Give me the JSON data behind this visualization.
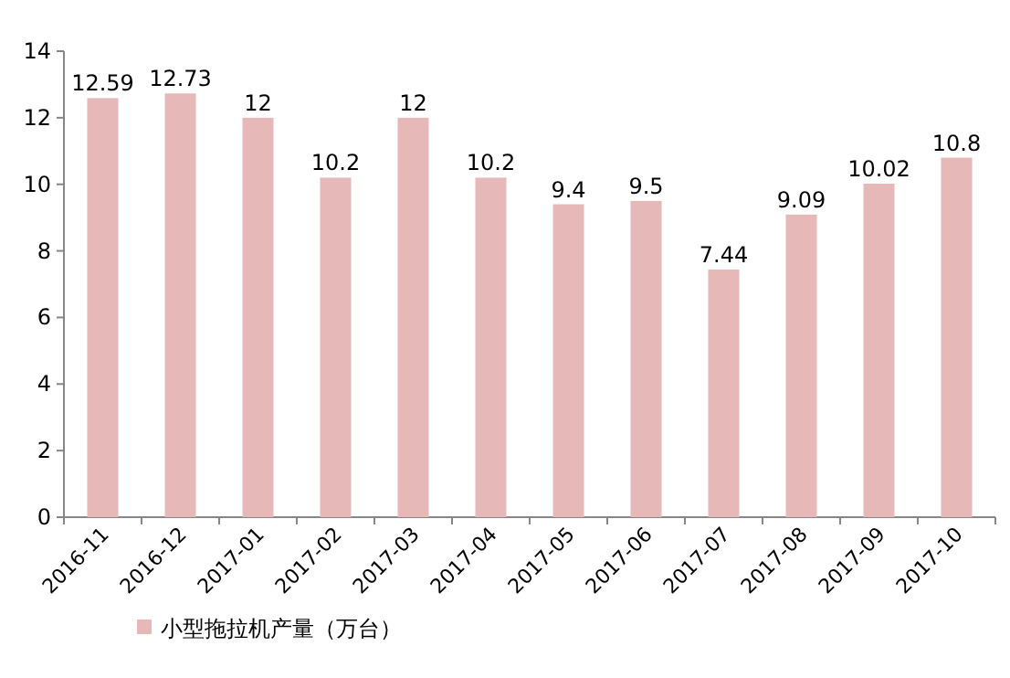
{
  "chart_data": {
    "type": "bar",
    "categories": [
      "2016-11",
      "2016-12",
      "2017-01",
      "2017-02",
      "2017-03",
      "2017-04",
      "2017-05",
      "2017-06",
      "2017-07",
      "2017-08",
      "2017-09",
      "2017-10"
    ],
    "series": [
      {
        "name": "小型拖拉机产量（万台）",
        "color": "#e6b9b8",
        "values": [
          12.59,
          12.73,
          12,
          10.2,
          12,
          10.2,
          9.4,
          9.5,
          7.44,
          9.09,
          10.02,
          10.8
        ]
      }
    ],
    "ylim": [
      0,
      14
    ],
    "yticks": [
      0,
      2,
      4,
      6,
      8,
      10,
      12,
      14
    ],
    "data_labels": true,
    "legend": "bottom left"
  }
}
